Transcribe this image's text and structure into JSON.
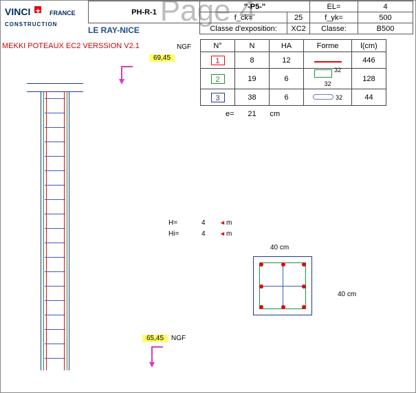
{
  "watermark": "Page 4",
  "logo": {
    "brand": "VINCI",
    "sub": "CONSTRUCTION",
    "france": "FRANCE"
  },
  "project_name": "LE RAY-NICE",
  "version_text": "MEKKI POTEAUX EC2 VERSSION V2.1",
  "header": {
    "ph": "PH-R-1",
    "p5": "\"-P5-\"",
    "el_label": "EL=",
    "el_val": "4",
    "fck_label": "f_ck=",
    "fck_val": "25",
    "fyk_label": "f_yk=",
    "fyk_val": "500",
    "exp_label": "Classe d'exposition:",
    "exp_val": "XC2",
    "cls_label": "Classe:",
    "cls_val": "B500"
  },
  "table": {
    "headers": {
      "n": "N°",
      "nn": "N",
      "ha": "HA",
      "forme": "Forme",
      "lcm": "l(cm)"
    },
    "rows": [
      {
        "num": "1",
        "num_color": "#e30613",
        "n": "8",
        "ha": "12",
        "forme": "line",
        "l": "446"
      },
      {
        "num": "2",
        "num_color": "#1d8f3a",
        "n": "19",
        "ha": "6",
        "forme": "rect",
        "forme_dim": "32",
        "l": "128"
      },
      {
        "num": "3",
        "num_color": "#1b3a82",
        "n": "38",
        "ha": "6",
        "forme": "pill",
        "forme_dim": "32",
        "l": "44"
      }
    ],
    "e_label": "e=",
    "e_val": "21",
    "e_unit": "cm"
  },
  "levels": {
    "top": {
      "val": "69,45",
      "unit": "NGF"
    },
    "bot": {
      "val": "65,45",
      "unit": "NGF"
    }
  },
  "section": {
    "h_label": "H=",
    "h_val": "4",
    "hi_label": "Hi=",
    "hi_val": "4",
    "unit_m": "m",
    "width_label": "40 cm",
    "height_label": "40 cm"
  },
  "colors": {
    "red": "#e30613",
    "blue": "#1b3a82",
    "green": "#1d8f3a",
    "magenta": "#d63cc4",
    "highlight": "#ffff66",
    "grey": "#888888"
  }
}
